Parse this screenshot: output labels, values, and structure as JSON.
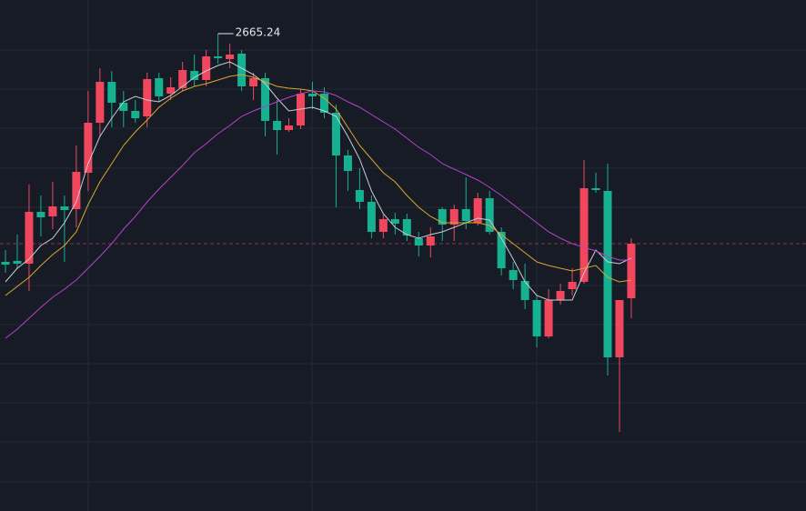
{
  "chart_data": {
    "type": "candlestick",
    "annotation": "2665.24",
    "ylim": [
      2402.74,
      2683.74
    ],
    "up_color": "#f0475f",
    "down_color": "#16b191",
    "open": [
      2539.74,
      2540.24,
      2538.74,
      2567.24,
      2564.74,
      2570.24,
      2568.74,
      2588.74,
      2616.24,
      2638.74,
      2627.24,
      2622.74,
      2619.74,
      2640.74,
      2632.24,
      2635.24,
      2644.74,
      2639.74,
      2652.74,
      2651.24,
      2654.24,
      2636.24,
      2640.74,
      2617.24,
      2612.24,
      2614.74,
      2632.24,
      2632.24,
      2621.74,
      2598.24,
      2579.24,
      2572.74,
      2556.24,
      2563.24,
      2563.24,
      2552.74,
      2548.74,
      2568.74,
      2560.24,
      2568.74,
      2561.24,
      2574.74,
      2556.24,
      2535.24,
      2529.24,
      2518.74,
      2498.74,
      2518.74,
      2524.74,
      2528.74,
      2580.24,
      2578.74,
      2487.24,
      2519.74
    ],
    "high": [
      2546.24,
      2554.74,
      2582.24,
      2576.24,
      2583.74,
      2576.24,
      2603.74,
      2633.74,
      2646.24,
      2644.74,
      2633.74,
      2628.74,
      2643.74,
      2643.74,
      2641.24,
      2649.74,
      2653.74,
      2656.24,
      2665.24,
      2659.74,
      2656.24,
      2643.74,
      2643.74,
      2628.74,
      2618.74,
      2634.74,
      2638.74,
      2635.74,
      2626.24,
      2601.24,
      2591.24,
      2576.24,
      2565.74,
      2566.74,
      2566.24,
      2556.24,
      2558.74,
      2569.74,
      2571.24,
      2586.24,
      2577.74,
      2578.74,
      2558.74,
      2539.74,
      2538.74,
      2521.24,
      2524.74,
      2527.74,
      2536.24,
      2595.74,
      2588.74,
      2593.74,
      2518.74,
      2552.74
    ],
    "low": [
      2533.74,
      2535.74,
      2523.74,
      2553.74,
      2557.74,
      2539.74,
      2558.74,
      2578.74,
      2608.74,
      2613.74,
      2613.74,
      2616.24,
      2613.74,
      2627.74,
      2628.74,
      2633.74,
      2636.24,
      2636.24,
      2648.74,
      2646.24,
      2633.74,
      2628.74,
      2608.74,
      2598.74,
      2611.24,
      2612.74,
      2623.74,
      2618.74,
      2569.74,
      2578.74,
      2568.74,
      2552.74,
      2552.74,
      2554.74,
      2551.24,
      2542.74,
      2542.24,
      2551.24,
      2551.24,
      2557.74,
      2559.74,
      2554.74,
      2532.24,
      2524.74,
      2513.74,
      2492.74,
      2497.74,
      2516.24,
      2521.24,
      2527.74,
      2577.74,
      2477.24,
      2446.24,
      2508.74
    ],
    "close": [
      2538.24,
      2538.74,
      2567.24,
      2564.24,
      2570.24,
      2568.24,
      2589.24,
      2616.24,
      2638.74,
      2627.24,
      2622.74,
      2618.74,
      2640.24,
      2630.74,
      2635.74,
      2645.24,
      2639.74,
      2652.74,
      2651.74,
      2653.74,
      2636.24,
      2640.74,
      2617.24,
      2612.24,
      2614.74,
      2632.24,
      2630.74,
      2621.74,
      2598.24,
      2589.74,
      2572.74,
      2556.24,
      2563.24,
      2560.74,
      2554.24,
      2548.74,
      2553.74,
      2560.24,
      2568.74,
      2562.24,
      2574.74,
      2556.24,
      2536.24,
      2529.74,
      2518.74,
      2498.74,
      2518.74,
      2523.74,
      2528.74,
      2580.24,
      2579.24,
      2487.24,
      2518.74,
      2549.74
    ],
    "series": [
      {
        "color": "#c9ccd3",
        "values": [
          2528.74,
          2536.24,
          2541.24,
          2548.74,
          2552.74,
          2561.24,
          2572.74,
          2593.74,
          2608.74,
          2618.74,
          2627.74,
          2630.74,
          2628.74,
          2627.74,
          2631.24,
          2636.24,
          2641.24,
          2644.74,
          2647.74,
          2649.74,
          2646.24,
          2642.74,
          2637.74,
          2629.74,
          2622.74,
          2623.74,
          2624.74,
          2622.74,
          2619.74,
          2608.74,
          2596.24,
          2578.74,
          2566.24,
          2558.74,
          2554.74,
          2552.74,
          2554.74,
          2556.24,
          2558.74,
          2561.24,
          2563.74,
          2562.74,
          2552.74,
          2541.24,
          2528.74,
          2521.24,
          2518.74,
          2518.74,
          2518.74,
          2533.74,
          2546.24,
          2539.74,
          2538.74,
          2541.74
        ]
      },
      {
        "color": "#d9a72c",
        "values": [
          2521.24,
          2526.24,
          2531.24,
          2537.74,
          2543.74,
          2548.74,
          2556.24,
          2571.24,
          2583.74,
          2593.74,
          2603.74,
          2611.24,
          2617.74,
          2624.74,
          2629.74,
          2633.74,
          2636.24,
          2637.74,
          2639.74,
          2641.74,
          2642.74,
          2641.24,
          2638.74,
          2636.24,
          2635.24,
          2634.74,
          2633.74,
          2629.74,
          2623.74,
          2613.74,
          2603.74,
          2596.24,
          2588.74,
          2583.74,
          2576.24,
          2569.74,
          2564.74,
          2561.24,
          2561.24,
          2561.24,
          2561.24,
          2559.74,
          2554.74,
          2549.74,
          2544.74,
          2539.74,
          2537.74,
          2536.24,
          2534.74,
          2536.24,
          2537.74,
          2531.24,
          2528.74,
          2529.74
        ]
      },
      {
        "color": "#b543c9",
        "values": [
          2497.74,
          2502.74,
          2508.74,
          2514.74,
          2520.24,
          2524.74,
          2529.74,
          2536.24,
          2542.74,
          2549.74,
          2557.74,
          2564.74,
          2572.74,
          2579.74,
          2586.24,
          2592.74,
          2599.74,
          2604.74,
          2610.24,
          2614.74,
          2619.74,
          2622.74,
          2625.24,
          2627.74,
          2630.24,
          2632.24,
          2633.74,
          2633.24,
          2631.24,
          2627.74,
          2624.74,
          2620.74,
          2616.74,
          2612.74,
          2607.74,
          2602.74,
          2598.74,
          2593.74,
          2590.74,
          2587.74,
          2584.74,
          2580.74,
          2576.24,
          2571.24,
          2566.24,
          2561.24,
          2556.24,
          2552.74,
          2549.74,
          2547.74,
          2545.74,
          2542.74,
          2540.74,
          2540.74
        ]
      }
    ]
  }
}
